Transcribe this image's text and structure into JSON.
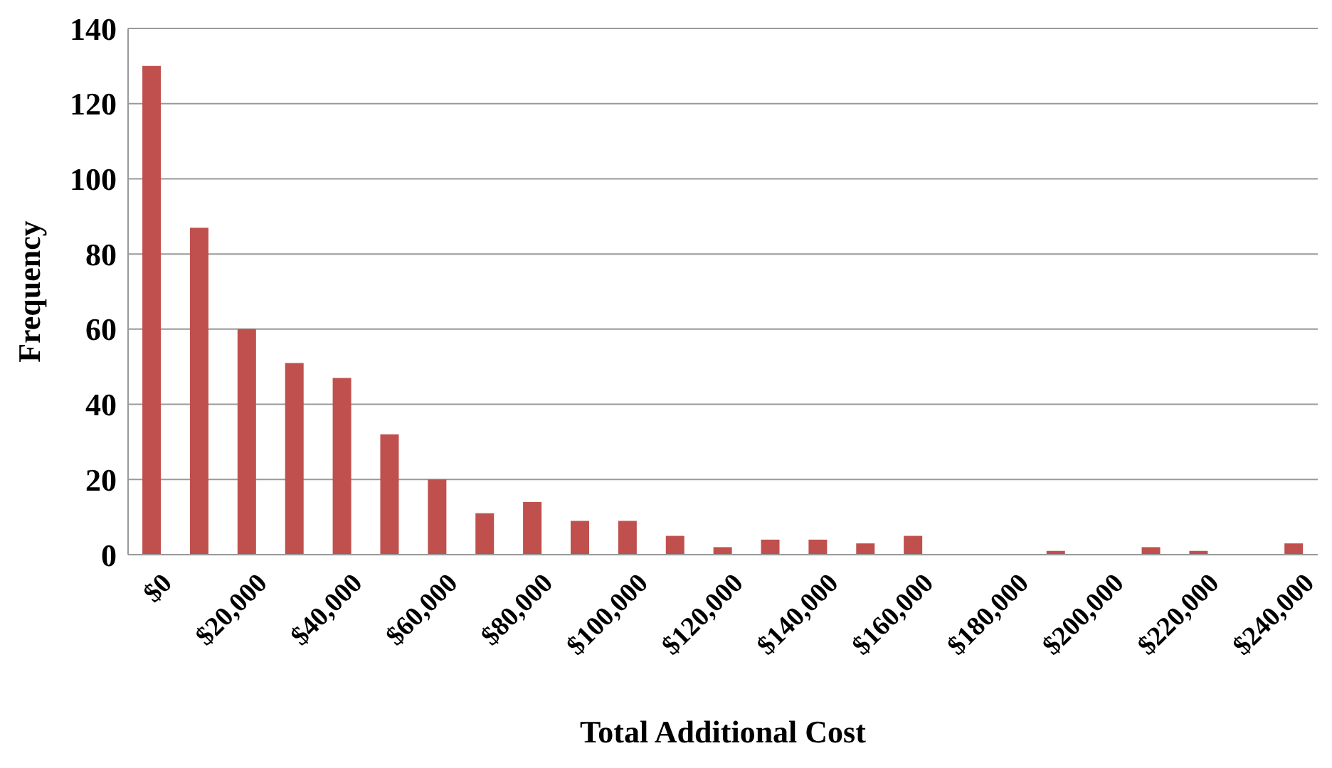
{
  "chart_data": {
    "type": "bar",
    "xlabel": "Total Additional Cost",
    "ylabel": "Frequency",
    "categories": [
      "$0",
      null,
      "$20,000",
      null,
      "$40,000",
      null,
      "$60,000",
      null,
      "$80,000",
      null,
      "$100,000",
      null,
      "$120,000",
      null,
      "$140,000",
      null,
      "$160,000",
      null,
      "$180,000",
      null,
      "$200,000",
      null,
      "$220,000",
      null,
      "$240,000"
    ],
    "values": [
      130,
      87,
      60,
      51,
      47,
      32,
      20,
      11,
      14,
      9,
      9,
      5,
      2,
      4,
      4,
      3,
      5,
      0,
      0,
      1,
      0,
      2,
      1,
      0,
      3
    ],
    "color": "#c0504d",
    "ylim": [
      0,
      140
    ],
    "yticks": [
      0,
      20,
      40,
      60,
      80,
      100,
      120,
      140
    ],
    "grid": "y"
  }
}
